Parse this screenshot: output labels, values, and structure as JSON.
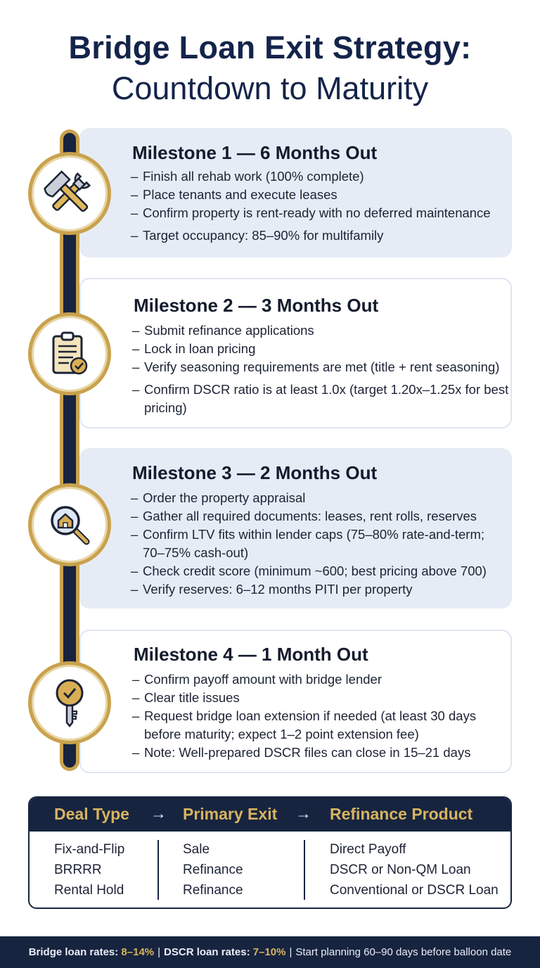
{
  "title": {
    "line1": "Bridge Loan Exit Strategy:",
    "line2": "Countdown to Maturity"
  },
  "milestones": [
    {
      "title": "Milestone 1 — 6 Months Out",
      "icon": "hammer-wrench-icon",
      "items": [
        "Finish all rehab work (100% complete)",
        "Place tenants and execute leases",
        "Confirm property is rent-ready with no deferred maintenance",
        "Target occupancy: 85–90% for multifamily"
      ]
    },
    {
      "title": "Milestone 2 — 3 Months Out",
      "icon": "clipboard-check-icon",
      "items": [
        "Submit refinance applications",
        "Lock in loan pricing",
        "Verify seasoning requirements are met (title + rent seasoning)",
        "Confirm DSCR ratio is at least 1.0x (target 1.20x–1.25x for best pricing)"
      ]
    },
    {
      "title": "Milestone 3 — 2 Months Out",
      "icon": "magnifier-house-icon",
      "items": [
        "Order the property appraisal",
        "Gather all required documents: leases, rent rolls, reserves",
        "Confirm LTV fits within lender caps (75–80% rate-and-term; 70–75% cash-out)",
        "Check credit score (minimum ~600; best pricing above 700)",
        "Verify reserves: 6–12 months PITI per property"
      ]
    },
    {
      "title": "Milestone 4 — 1 Month Out",
      "icon": "key-check-icon",
      "items": [
        "Confirm payoff amount with bridge lender",
        "Clear title issues",
        "Request bridge loan extension if needed (at least 30 days before maturity; expect 1–2 point extension fee)",
        "Note: Well-prepared DSCR files can close in 15–21 days"
      ]
    }
  ],
  "table": {
    "headers": [
      "Deal Type",
      "Primary Exit",
      "Refinance Product"
    ],
    "arrow": "→",
    "rows": [
      [
        "Fix-and-Flip",
        "Sale",
        "Direct Payoff"
      ],
      [
        "BRRRR",
        "Refinance",
        "DSCR or Non-QM Loan"
      ],
      [
        "Rental Hold",
        "Refinance",
        "Conventional or DSCR Loan"
      ]
    ]
  },
  "footer": {
    "bridge_label": "Bridge loan rates:",
    "bridge_value": "8–14%",
    "dscr_label": "DSCR loan rates:",
    "dscr_value": "7–10%",
    "planning": "Start planning 60–90 days before balloon date",
    "separator": "|"
  },
  "colors": {
    "navy": "#17243f",
    "gold": "#c9a24d",
    "gold_text": "#d8b45f",
    "card_shade": "#e6ecf5"
  }
}
